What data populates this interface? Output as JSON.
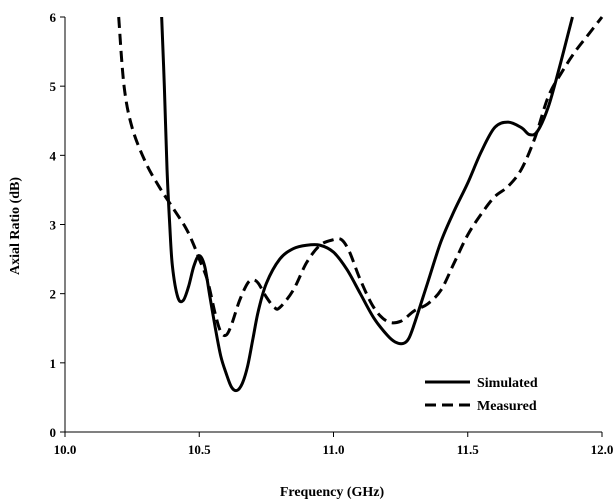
{
  "chart_data": {
    "type": "line",
    "title": "",
    "xlabel": "Frequency (GHz)",
    "ylabel": "Axial Ratio  (dB)",
    "xlim": [
      10.0,
      12.0
    ],
    "ylim": [
      0,
      6
    ],
    "xticks": [
      10.0,
      10.5,
      11.0,
      11.5,
      12.0
    ],
    "xtick_labels": [
      "10.0",
      "10.5",
      "11.0",
      "11.5",
      "12.0"
    ],
    "yticks": [
      0,
      1,
      2,
      3,
      4,
      5,
      6
    ],
    "ytick_labels": [
      "0",
      "1",
      "2",
      "3",
      "4",
      "5",
      "6"
    ],
    "grid": false,
    "legend_position": "bottom-right",
    "series": [
      {
        "name": "Simulated",
        "style": "solid",
        "color": "#000000",
        "x": [
          10.36,
          10.37,
          10.38,
          10.39,
          10.4,
          10.42,
          10.44,
          10.46,
          10.48,
          10.5,
          10.52,
          10.54,
          10.56,
          10.58,
          10.6,
          10.62,
          10.64,
          10.66,
          10.68,
          10.7,
          10.72,
          10.75,
          10.8,
          10.85,
          10.9,
          10.95,
          11.0,
          11.05,
          11.1,
          11.15,
          11.2,
          11.23,
          11.26,
          11.28,
          11.3,
          11.35,
          11.4,
          11.45,
          11.5,
          11.55,
          11.6,
          11.65,
          11.7,
          11.73,
          11.76,
          11.8,
          11.84,
          11.88,
          11.89
        ],
        "y": [
          6.0,
          5.0,
          3.8,
          3.0,
          2.4,
          1.95,
          1.9,
          2.1,
          2.4,
          2.55,
          2.4,
          1.95,
          1.5,
          1.1,
          0.85,
          0.65,
          0.6,
          0.7,
          0.95,
          1.35,
          1.75,
          2.15,
          2.5,
          2.65,
          2.7,
          2.7,
          2.6,
          2.35,
          2.0,
          1.65,
          1.4,
          1.3,
          1.28,
          1.35,
          1.55,
          2.15,
          2.75,
          3.2,
          3.6,
          4.05,
          4.4,
          4.48,
          4.4,
          4.3,
          4.35,
          4.7,
          5.25,
          5.85,
          6.0
        ]
      },
      {
        "name": "Measured",
        "style": "dashed",
        "color": "#000000",
        "x": [
          10.2,
          10.22,
          10.25,
          10.3,
          10.35,
          10.4,
          10.45,
          10.48,
          10.5,
          10.53,
          10.56,
          10.58,
          10.6,
          10.62,
          10.65,
          10.68,
          10.7,
          10.72,
          10.75,
          10.78,
          10.8,
          10.85,
          10.9,
          10.95,
          11.0,
          11.03,
          11.06,
          11.1,
          11.15,
          11.2,
          11.25,
          11.3,
          11.35,
          11.4,
          11.45,
          11.5,
          11.55,
          11.6,
          11.65,
          11.7,
          11.75,
          11.8,
          11.85,
          11.9,
          11.95,
          12.0
        ],
        "y": [
          6.0,
          5.0,
          4.4,
          3.9,
          3.55,
          3.25,
          2.95,
          2.7,
          2.5,
          2.2,
          1.7,
          1.45,
          1.4,
          1.55,
          1.9,
          2.15,
          2.2,
          2.15,
          1.95,
          1.8,
          1.8,
          2.05,
          2.45,
          2.7,
          2.78,
          2.78,
          2.6,
          2.2,
          1.8,
          1.6,
          1.6,
          1.75,
          1.85,
          2.05,
          2.45,
          2.85,
          3.15,
          3.4,
          3.55,
          3.8,
          4.25,
          4.85,
          5.2,
          5.5,
          5.75,
          6.0
        ]
      }
    ]
  }
}
